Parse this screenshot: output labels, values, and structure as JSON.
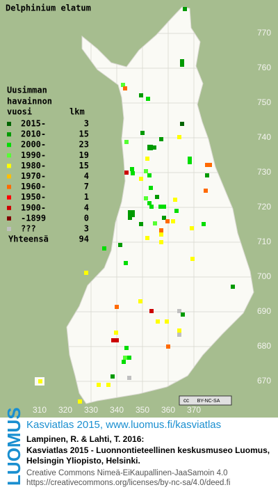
{
  "title": "Delphinium elatum",
  "legend": {
    "heading": [
      "Uusimman",
      "havainnon"
    ],
    "col_period": "vuosi",
    "col_count": "lkm",
    "rows": [
      {
        "label": "2015-",
        "count": 3,
        "color": "#006400"
      },
      {
        "label": "2010-",
        "count": 15,
        "color": "#009a00"
      },
      {
        "label": "2000-",
        "count": 23,
        "color": "#00dd00"
      },
      {
        "label": "1990-",
        "count": 19,
        "color": "#55ff33"
      },
      {
        "label": "1980-",
        "count": 15,
        "color": "#ffff00"
      },
      {
        "label": "1970-",
        "count": 4,
        "color": "#ffc000"
      },
      {
        "label": "1960-",
        "count": 7,
        "color": "#ff6a00"
      },
      {
        "label": "1950-",
        "count": 1,
        "color": "#ff0000"
      },
      {
        "label": "1900-",
        "count": 4,
        "color": "#cc0000"
      },
      {
        "label": "-1899",
        "count": 0,
        "color": "#800000"
      },
      {
        "label": "???",
        "count": 3,
        "color": "#c0c0c0"
      }
    ],
    "total_label": "Yhteensä",
    "total": 94
  },
  "xticks": [
    310,
    320,
    330,
    340,
    350,
    360,
    370
  ],
  "yticks": [
    770,
    760,
    750,
    740,
    730,
    720,
    710,
    700,
    690,
    680,
    670
  ],
  "license_badge": {
    "symbol": "cc",
    "terms": "BY-NC-SA"
  },
  "footer": {
    "logo": "LUOMUS",
    "link": "Kasviatlas 2015, www.luomus.fi/kasviatlas",
    "citation": [
      "Lampinen, R. & Lahti, T. 2016:",
      "Kasviatlas 2015 - Luonnontieteellinen keskusmuseo Luomus,",
      "Helsingin Yliopisto, Helsinki."
    ],
    "license": [
      "Creative Commons Nimeä-EiKaupallinen-JaaSamoin 4.0",
      "https://creativecommons.org/licenses/by-nc-sa/4.0/deed.fi"
    ]
  }
}
